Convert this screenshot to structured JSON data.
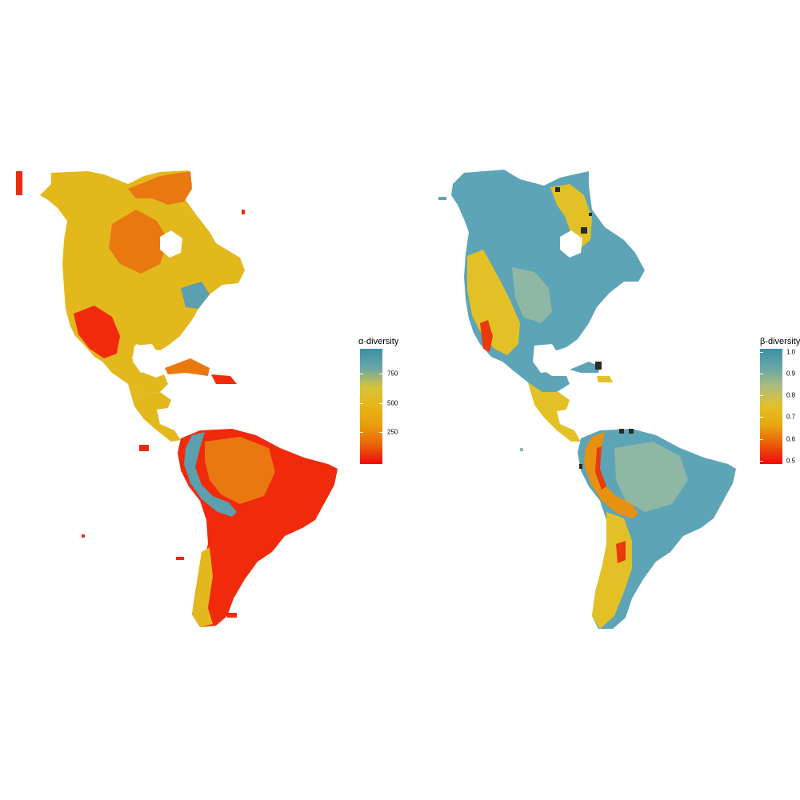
{
  "panels": {
    "alpha": {
      "legend": {
        "title": "α-diversity",
        "ticks": [
          "750",
          "500",
          "250"
        ],
        "gradient": [
          "#3a8fa6",
          "#6aa6a7",
          "#d6c43a",
          "#e7b616",
          "#e89d0f",
          "#ea6209",
          "#f00a0a"
        ]
      },
      "colors": {
        "low": "#f02a0a",
        "mid_low": "#e8780f",
        "mid": "#e3b81d",
        "high": "#5c9fae",
        "dark": "#3a7f8c"
      }
    },
    "beta": {
      "legend": {
        "title": "β-diversity",
        "ticks": [
          "1.0",
          "0.9",
          "0.8",
          "0.7",
          "0.6",
          "0.5"
        ],
        "gradient": [
          "#3a8fa6",
          "#6aa6a7",
          "#aebd7a",
          "#e3c126",
          "#e8a50f",
          "#ea5a09",
          "#f00a0a"
        ]
      },
      "colors": {
        "base": "#5da4b7",
        "mixed": "#8fb8a4",
        "yellow": "#e3c126",
        "orange": "#e8900f",
        "red": "#e83a0a",
        "black": "#2a2a2a"
      }
    }
  }
}
